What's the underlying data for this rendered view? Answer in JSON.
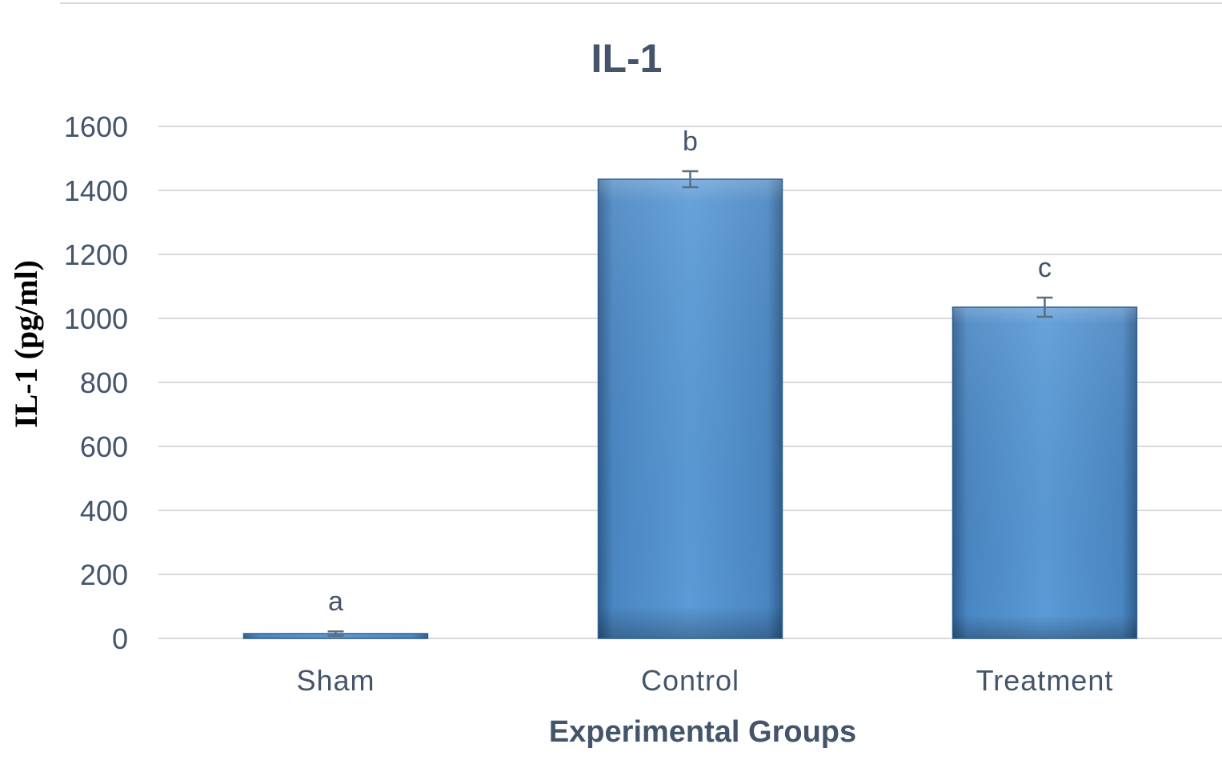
{
  "chart_data": {
    "type": "bar",
    "title": "IL-1",
    "xlabel": "Experimental Groups",
    "ylabel": "IL-1 (pg/ml)",
    "categories": [
      "Sham",
      "Control",
      "Treatment"
    ],
    "values": [
      15,
      1435,
      1035
    ],
    "error": [
      7,
      25,
      30
    ],
    "significance_labels": [
      "a",
      "b",
      "c"
    ],
    "ylim": [
      0,
      1600
    ],
    "yticks": [
      "0",
      "200",
      "400",
      "600",
      "800",
      "1000",
      "1200",
      "1400",
      "1600"
    ],
    "grid": true,
    "colors": {
      "bar": "#5b9bd5",
      "bar_dark": "#2f5f8f",
      "text": "#44546a",
      "grid": "#d9d9d9",
      "error": "#5a6e85"
    }
  }
}
